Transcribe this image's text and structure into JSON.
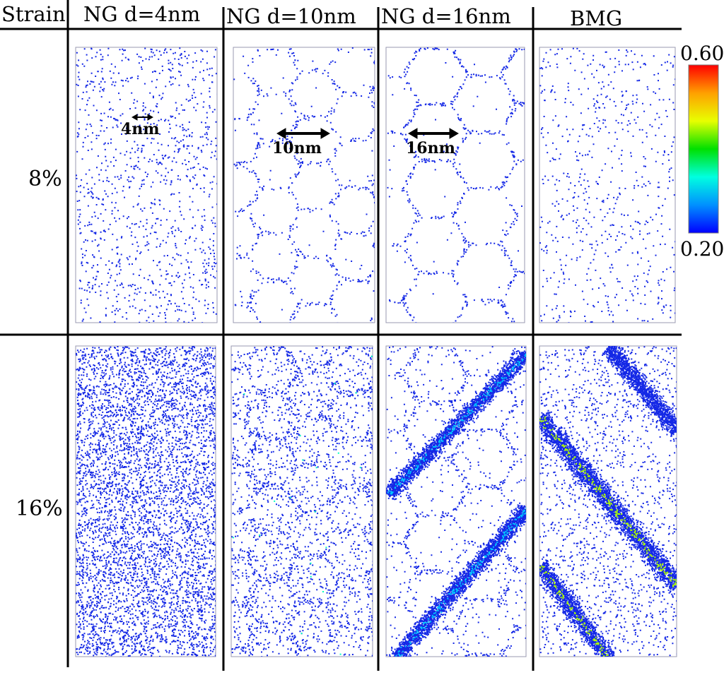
{
  "figure": {
    "header_first": "Strain",
    "columns": [
      {
        "label": "NG d=4nm",
        "scale": "4nm",
        "grain": 4
      },
      {
        "label": "NG d=10nm",
        "scale": "10nm",
        "grain": 10
      },
      {
        "label": "NG d=16nm",
        "scale": "16nm",
        "grain": 16
      },
      {
        "label": "BMG",
        "scale": "",
        "grain": 0
      }
    ],
    "rows": [
      {
        "label": "8%"
      },
      {
        "label": "16%"
      }
    ],
    "colorbar": {
      "max_label": "0.60",
      "min_label": "0.20",
      "stops": [
        "#ff0000",
        "#ffa000",
        "#e8ff00",
        "#00e000",
        "#00ffe0",
        "#0090ff",
        "#0000ff"
      ]
    },
    "atom_color": "#1428e6"
  }
}
